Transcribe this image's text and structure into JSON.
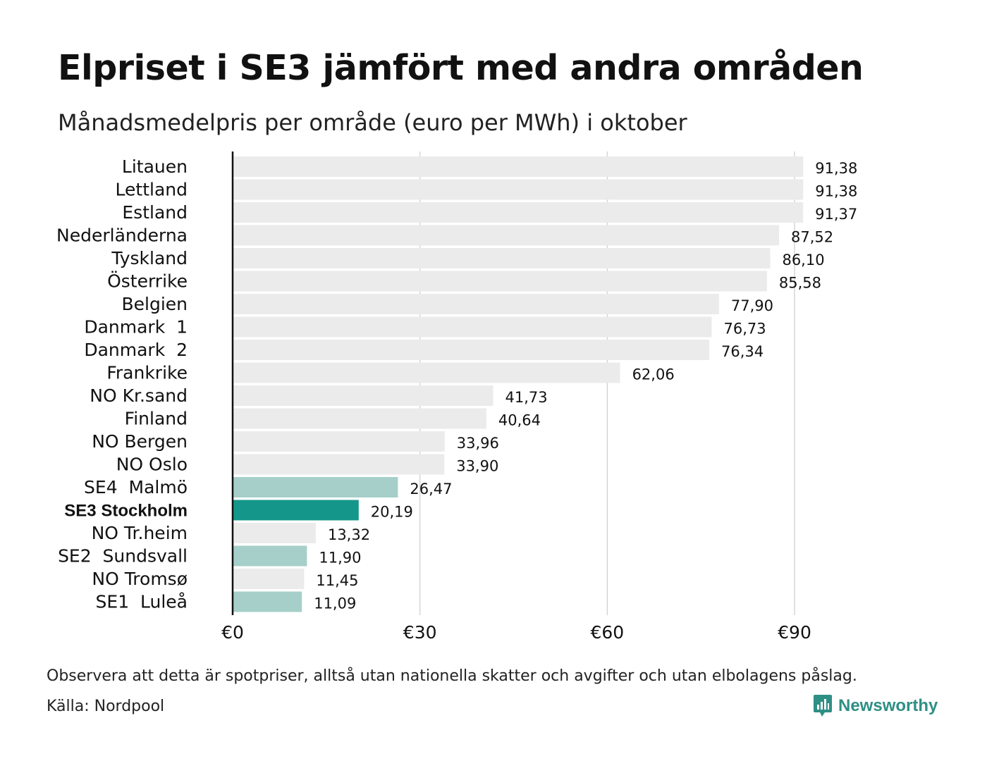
{
  "title": "Elpriset i SE3 jämfört med andra områden",
  "subtitle": "Månadsmedelpris per område (euro per MWh) i oktober",
  "footnote": "Observera att detta är spotpriser, alltså utan nationella skatter och avgifter och utan elbolagens påslag.",
  "source": "Källa: Nordpool",
  "brand": {
    "name": "Newsworthy",
    "logo_icon": "bar-chart-speech-bubble-icon"
  },
  "colors": {
    "default_bar": "#ebebeb",
    "swedish_zone_bar": "#a6cfc9",
    "highlight_bar": "#14978a",
    "axis_line": "#111111",
    "grid_line": "#cccccc",
    "brand": "#2e8f85"
  },
  "chart_data": {
    "type": "bar",
    "orientation": "horizontal",
    "xlim": [
      0,
      100
    ],
    "x_ticks": [
      0,
      30,
      60,
      90
    ],
    "x_tick_labels": [
      "€0",
      "€30",
      "€60",
      "€90"
    ],
    "grid": true,
    "categories": [
      "Litauen",
      "Lettland",
      "Estland",
      "Nederländerna",
      "Tyskland",
      "Österrike",
      "Belgien",
      "Danmark  1",
      "Danmark  2",
      "Frankrike",
      "NO Kr.sand",
      "Finland",
      "NO Bergen",
      "NO Oslo",
      "SE4  Malmö",
      "SE3 Stockholm",
      "NO Tr.heim",
      "SE2  Sundsvall",
      "NO Tromsø",
      "SE1  Luleå"
    ],
    "values": [
      91.38,
      91.38,
      91.37,
      87.52,
      86.1,
      85.58,
      77.9,
      76.73,
      76.34,
      62.06,
      41.73,
      40.64,
      33.96,
      33.9,
      26.47,
      20.19,
      13.32,
      11.9,
      11.45,
      11.09
    ],
    "value_labels": [
      "91,38",
      "91,38",
      "91,37",
      "87,52",
      "86,10",
      "85,58",
      "77,90",
      "76,73",
      "76,34",
      "62,06",
      "41,73",
      "40,64",
      "33,96",
      "33,90",
      "26,47",
      "20,19",
      "13,32",
      "11,90",
      "11,45",
      "11,09"
    ],
    "bar_style": [
      "default",
      "default",
      "default",
      "default",
      "default",
      "default",
      "default",
      "default",
      "default",
      "default",
      "default",
      "default",
      "default",
      "default",
      "swedish_zone",
      "highlight",
      "default",
      "swedish_zone",
      "default",
      "swedish_zone"
    ]
  }
}
